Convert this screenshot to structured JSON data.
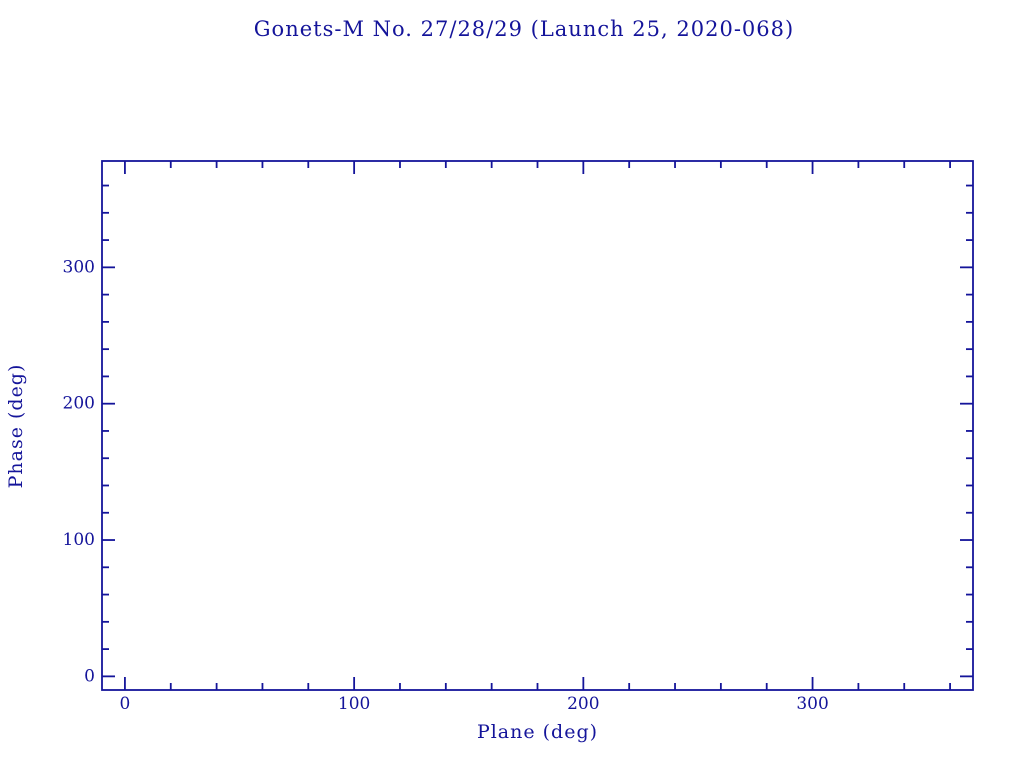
{
  "title": "Gonets-M No. 27/28/29 (Launch 25, 2020-068)",
  "colors": {
    "pen": "#14149a",
    "background": "#ffffff"
  },
  "chart_data": {
    "type": "scatter",
    "title": "Gonets-M No. 27/28/29 (Launch 25, 2020-068)",
    "xlabel": "Plane (deg)",
    "ylabel": "Phase (deg)",
    "xlim": [
      -10,
      370
    ],
    "ylim": [
      -10,
      378
    ],
    "x_ticks": [
      {
        "value": 0,
        "label": "0"
      },
      {
        "value": 100,
        "label": "100"
      },
      {
        "value": 200,
        "label": "200"
      },
      {
        "value": 300,
        "label": "300"
      }
    ],
    "y_ticks": [
      {
        "value": 0,
        "label": "0"
      },
      {
        "value": 100,
        "label": "100"
      },
      {
        "value": 200,
        "label": "200"
      },
      {
        "value": 300,
        "label": "300"
      }
    ],
    "minor_tick_step_x": 20,
    "minor_tick_step_y": 20,
    "grid": false,
    "legend": null,
    "series": []
  }
}
